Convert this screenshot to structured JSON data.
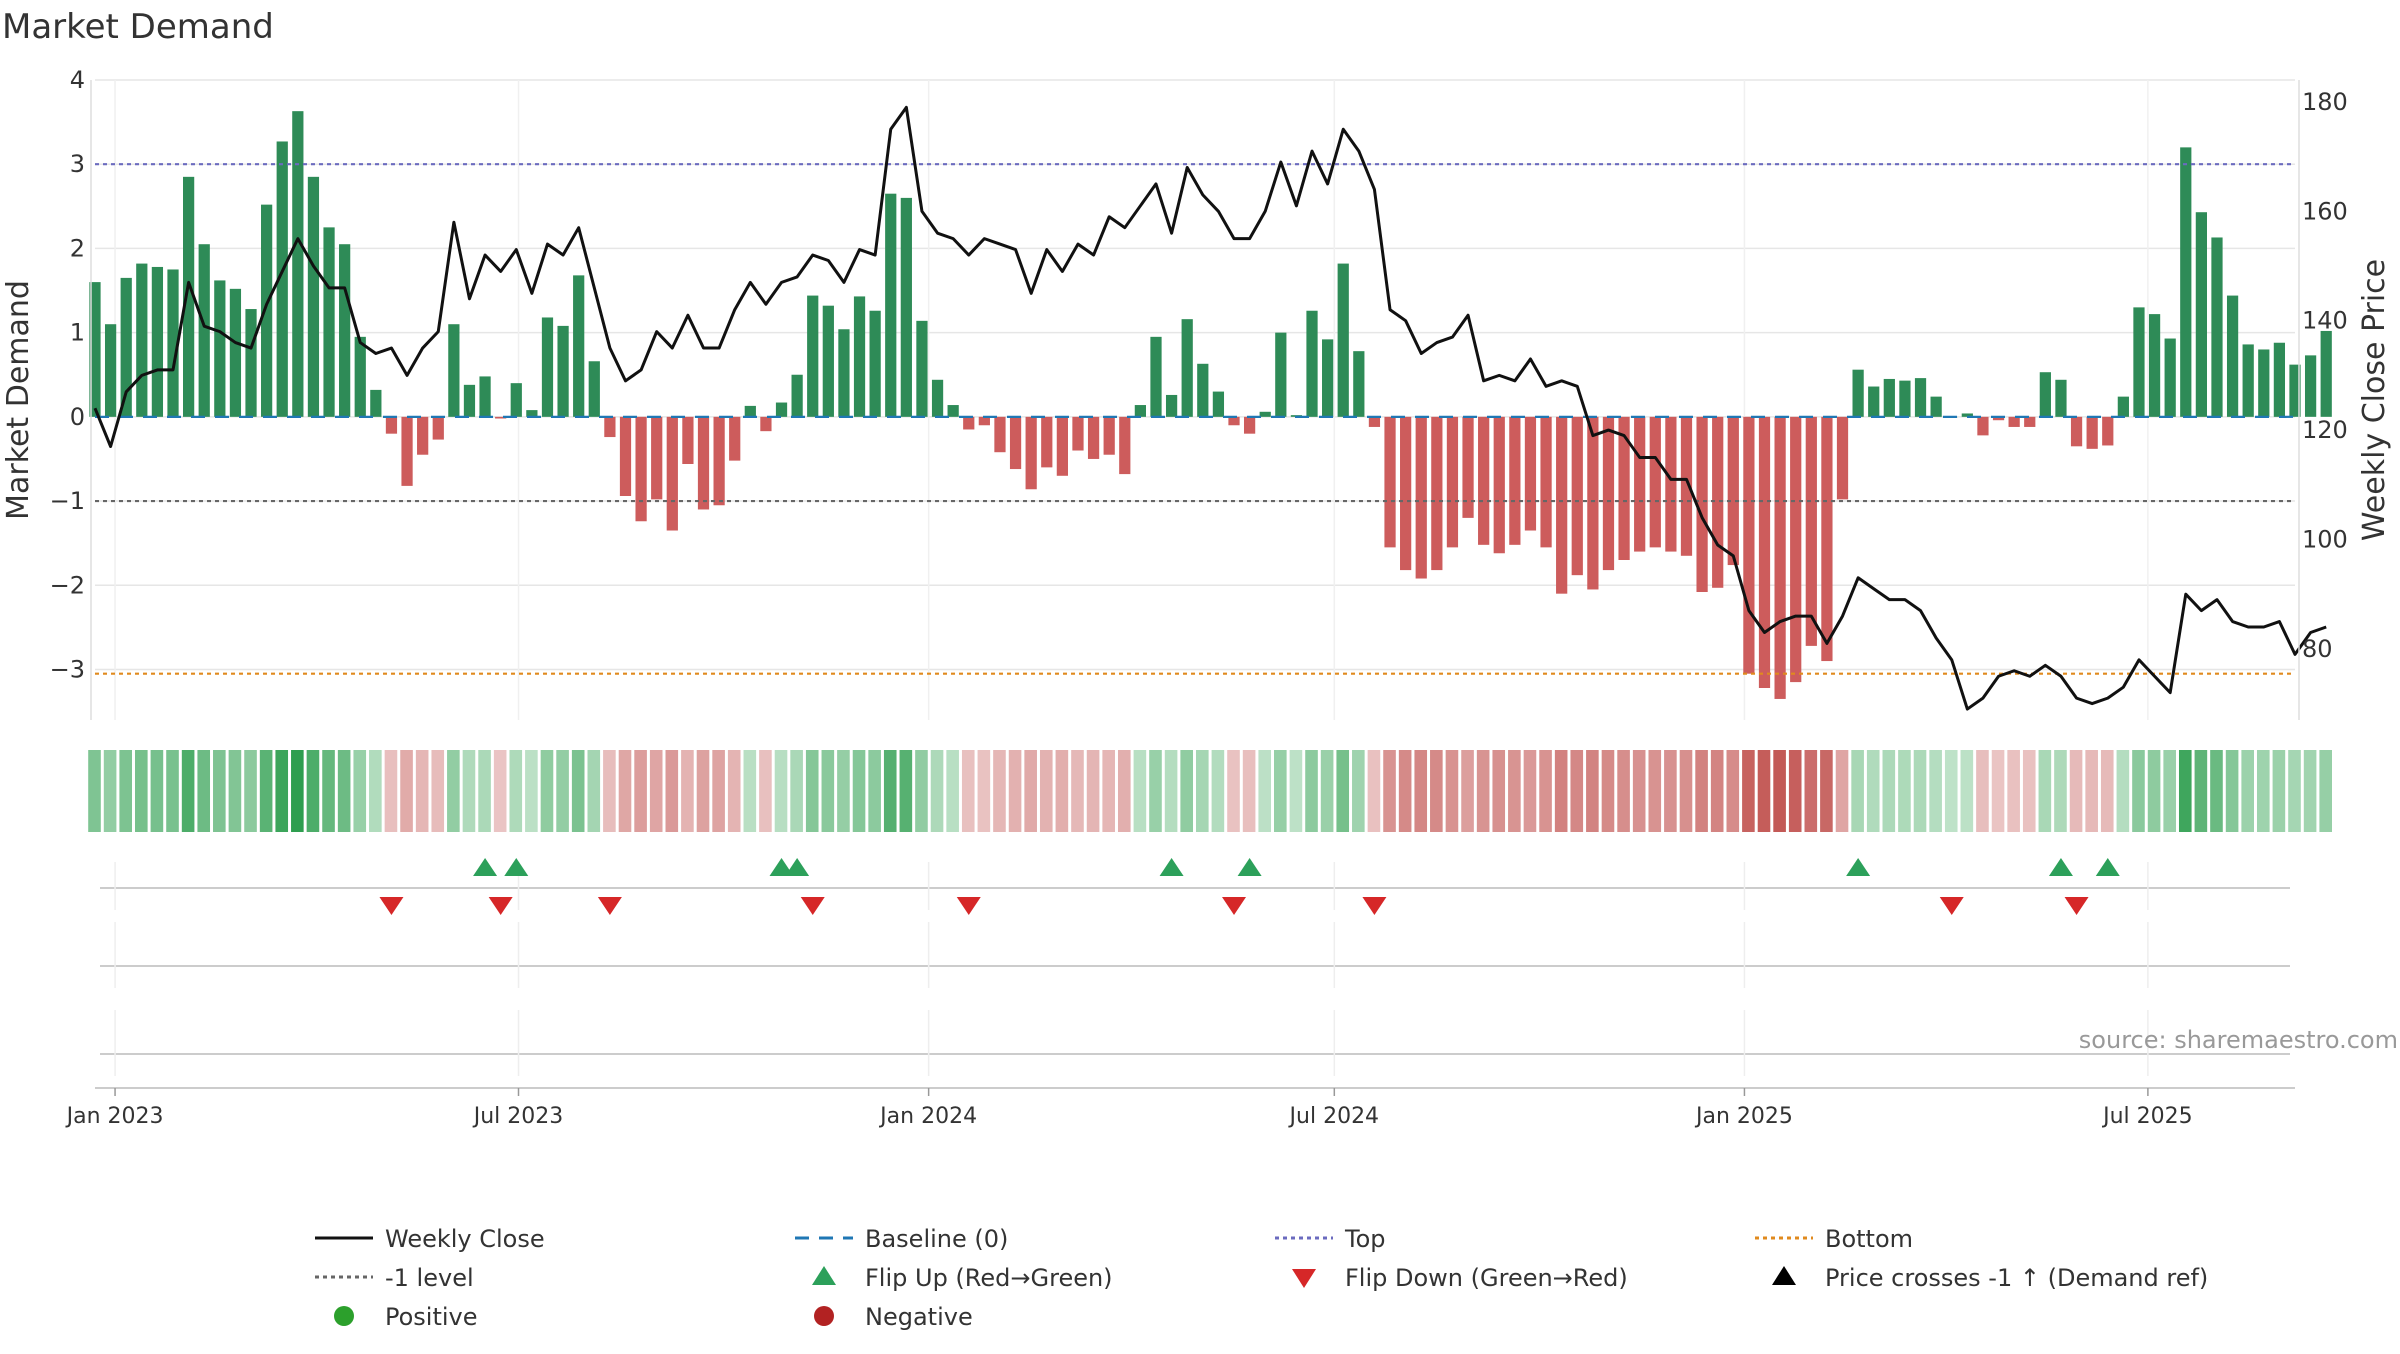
{
  "title": "Market Demand",
  "source": "source: sharemaestro.com",
  "colors": {
    "positive": "#2e8b57",
    "negative": "#cd5c5c",
    "price": "#111111",
    "baseline": "#1f77b4",
    "top": "#6b6bbf",
    "bottom": "#e08a1e",
    "minus1": "#666666",
    "flip_up": "#2ca05a",
    "flip_down": "#d62728",
    "positive_dot": "#2ca02c",
    "negative_dot": "#b22222",
    "grid": "#e6e6e6"
  },
  "chart_data": {
    "type": "bar",
    "title": "Market Demand",
    "ylabel": "Market Demand",
    "y2label": "Weekly Close Price",
    "ylim": [
      -3.6,
      4.0
    ],
    "y2lim": [
      67,
      184
    ],
    "yticks": [
      "4",
      "3",
      "2",
      "1",
      "0",
      "−1",
      "−2",
      "−3"
    ],
    "yticks_values": [
      4,
      3,
      2,
      1,
      0,
      -1,
      -2,
      -3
    ],
    "y2ticks": [
      "180",
      "160",
      "140",
      "120",
      "100",
      "80"
    ],
    "y2ticks_values": [
      180,
      160,
      140,
      120,
      100,
      80
    ],
    "x_start": "2022-12-23",
    "x_end": "2025-09-05",
    "xticks": [
      {
        "label": "Jan 2023",
        "date": "2023-01-01"
      },
      {
        "label": "Jul 2023",
        "date": "2023-07-01"
      },
      {
        "label": "Jan 2024",
        "date": "2024-01-01"
      },
      {
        "label": "Jul 2024",
        "date": "2024-07-01"
      },
      {
        "label": "Jan 2025",
        "date": "2025-01-01"
      },
      {
        "label": "Jul 2025",
        "date": "2025-07-01"
      }
    ],
    "weeks_start": "2022-12-23",
    "demand": [
      1.6,
      1.1,
      1.65,
      1.82,
      1.78,
      1.75,
      2.85,
      2.05,
      1.62,
      1.52,
      1.28,
      2.52,
      3.27,
      3.63,
      2.85,
      2.25,
      2.05,
      0.95,
      0.32,
      -0.2,
      -0.82,
      -0.45,
      -0.27,
      1.1,
      0.38,
      0.48,
      -0.02,
      0.4,
      0.08,
      1.18,
      1.08,
      1.68,
      0.66,
      -0.24,
      -0.94,
      -1.24,
      -0.98,
      -1.35,
      -0.56,
      -1.1,
      -1.05,
      -0.52,
      0.13,
      -0.17,
      0.17,
      0.5,
      1.44,
      1.32,
      1.04,
      1.43,
      1.26,
      2.65,
      2.6,
      1.14,
      0.44,
      0.14,
      -0.15,
      -0.1,
      -0.42,
      -0.62,
      -0.86,
      -0.6,
      -0.7,
      -0.4,
      -0.5,
      -0.45,
      -0.68,
      0.14,
      0.95,
      0.26,
      1.16,
      0.63,
      0.3,
      -0.1,
      -0.2,
      0.06,
      1.0,
      0.02,
      1.26,
      0.92,
      1.82,
      0.78,
      -0.12,
      -1.55,
      -1.82,
      -1.92,
      -1.82,
      -1.55,
      -1.2,
      -1.52,
      -1.62,
      -1.52,
      -1.35,
      -1.55,
      -2.1,
      -1.88,
      -2.05,
      -1.82,
      -1.7,
      -1.6,
      -1.55,
      -1.6,
      -1.65,
      -2.08,
      -2.03,
      -1.76,
      -3.05,
      -3.22,
      -3.35,
      -3.15,
      -2.72,
      -2.9,
      -0.98,
      0.56,
      0.36,
      0.45,
      0.43,
      0.46,
      0.24,
      0.0,
      0.04,
      -0.22,
      -0.04,
      -0.12,
      -0.12,
      0.53,
      0.44,
      -0.35,
      -0.38,
      -0.34,
      0.24,
      1.3,
      1.22,
      0.93,
      3.2,
      2.43,
      2.13,
      1.44,
      0.86,
      0.8,
      0.88,
      0.62,
      0.73,
      1.02
    ],
    "price": [
      124,
      117,
      127,
      130,
      131,
      131,
      147,
      139,
      138,
      136,
      135,
      143,
      149,
      155,
      150,
      146,
      146,
      136,
      134,
      135,
      130,
      135,
      138,
      158,
      144,
      152,
      149,
      153,
      145,
      154,
      152,
      157,
      146,
      135,
      129,
      131,
      138,
      135,
      141,
      135,
      135,
      142,
      147,
      143,
      147,
      148,
      152,
      151,
      147,
      153,
      152,
      175,
      179,
      160,
      156,
      155,
      152,
      155,
      154,
      153,
      145,
      153,
      149,
      154,
      152,
      159,
      157,
      161,
      165,
      156,
      168,
      163,
      160,
      155,
      155,
      160,
      169,
      161,
      171,
      165,
      175,
      171,
      164,
      142,
      140,
      134,
      136,
      137,
      141,
      129,
      130,
      129,
      133,
      128,
      129,
      128,
      119,
      120,
      119,
      115,
      115,
      111,
      111,
      104,
      99,
      97,
      87,
      83,
      85,
      86,
      86,
      81,
      86,
      93,
      91,
      89,
      89,
      87,
      82,
      78,
      69,
      71,
      75,
      76,
      75,
      77,
      75,
      71,
      70,
      71,
      73,
      78,
      75,
      72,
      90,
      87,
      89,
      85,
      84,
      84,
      85,
      79,
      83,
      84
    ],
    "flips_up": [
      "2023-06-16",
      "2023-06-30",
      "2023-10-27",
      "2023-11-03",
      "2024-04-19",
      "2024-05-24",
      "2025-02-21",
      "2025-05-23",
      "2025-06-13"
    ],
    "flips_down": [
      "2023-05-05",
      "2023-06-23",
      "2023-08-11",
      "2023-11-10",
      "2024-01-19",
      "2024-05-17",
      "2024-07-19",
      "2025-04-04",
      "2025-05-30"
    ]
  },
  "legend": [
    {
      "label": "Weekly Close",
      "kind": "line-solid",
      "color": "#111111"
    },
    {
      "label": "Baseline (0)",
      "kind": "line-dashed",
      "color": "#1f77b4"
    },
    {
      "label": "Top",
      "kind": "line-dotted",
      "color": "#6b6bbf"
    },
    {
      "label": "Bottom",
      "kind": "line-dotted",
      "color": "#e08a1e"
    },
    {
      "label": "-1 level",
      "kind": "line-dotted",
      "color": "#666666"
    },
    {
      "label": "Flip Up (Red→Green)",
      "kind": "triangle-up",
      "color": "#2ca05a"
    },
    {
      "label": "Flip Down (Green→Red)",
      "kind": "triangle-down",
      "color": "#d62728"
    },
    {
      "label": "Price crosses -1 ↑ (Demand ref)",
      "kind": "triangle-up",
      "color": "#000000"
    },
    {
      "label": "Positive",
      "kind": "dot",
      "color": "#2ca02c"
    },
    {
      "label": "Negative",
      "kind": "dot",
      "color": "#b22222"
    }
  ]
}
